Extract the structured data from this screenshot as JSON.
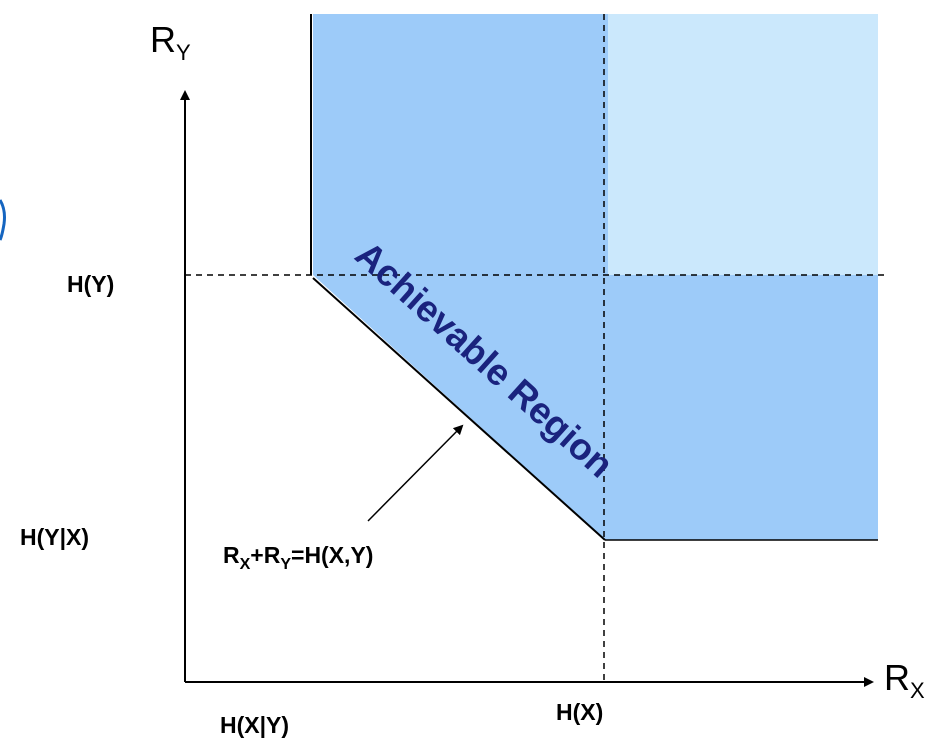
{
  "axes": {
    "y_name": "R",
    "y_sub": "Y",
    "x_name": "R",
    "x_sub": "X"
  },
  "labels": {
    "h_y": "H(Y)",
    "h_y_given_x": "H(Y|X)",
    "h_x_given_y": "H(X|Y)",
    "h_x": "H(X)"
  },
  "region": {
    "label": "Achievable Region"
  },
  "equation": {
    "r1": "R",
    "s1": "X",
    "plus": "+R",
    "s2": "Y",
    "rhs": "=H(X,Y)"
  },
  "colors": {
    "region_fill": "#9dcbf9",
    "corner_fill": "#cbe8fc",
    "region_text": "#1a237e",
    "stray_mark": "#1565c0"
  }
}
